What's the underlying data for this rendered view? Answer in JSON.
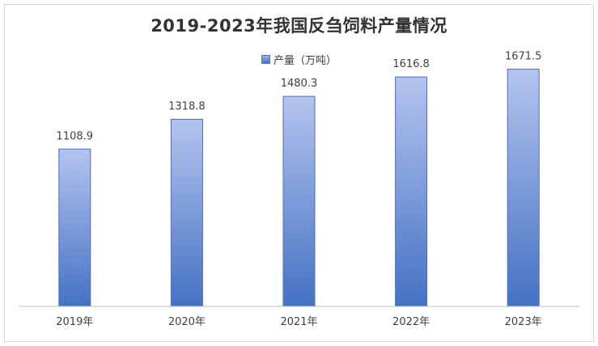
{
  "chart_data": {
    "type": "bar",
    "title": "2019-2023年我国反刍饲料产量情况",
    "legend": "产量（万吨）",
    "legend_position": "top",
    "categories": [
      "2019年",
      "2020年",
      "2021年",
      "2022年",
      "2023年"
    ],
    "series": [
      {
        "name": "产量（万吨）",
        "values": [
          1108.9,
          1318.8,
          1480.3,
          1616.8,
          1671.5
        ]
      }
    ],
    "data_labels": [
      "1108.9",
      "1318.8",
      "1480.3",
      "1616.8",
      "1671.5"
    ],
    "ylim": [
      0,
      1800
    ],
    "grid": false,
    "colors": {
      "bar_top": "#b4c4ee",
      "bar_bottom": "#4472c4",
      "bar_border": "#4f6fb8",
      "axis": "#bfbfbf"
    }
  }
}
